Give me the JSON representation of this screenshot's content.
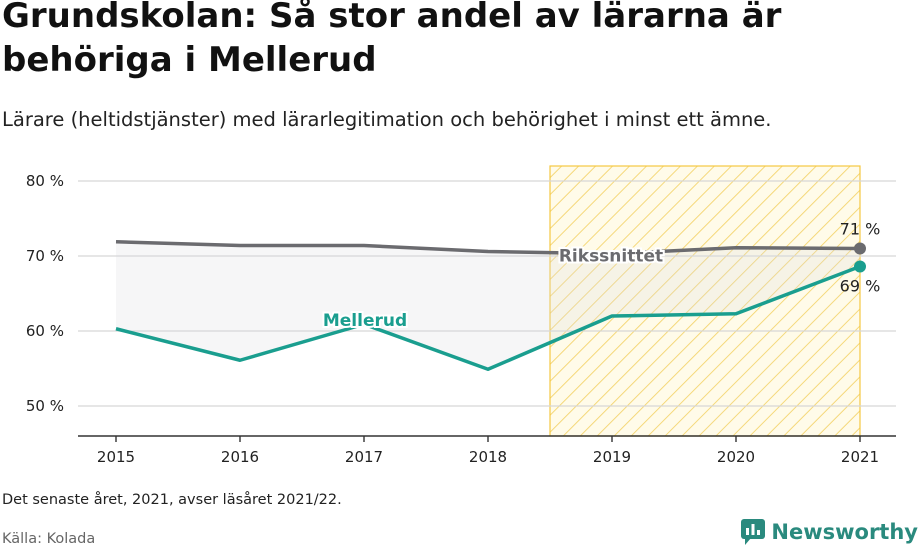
{
  "header": {
    "title": "Grundskolan: Så stor andel av lärarna är behöriga i Mellerud",
    "subtitle": "Lärare (heltidstjänster) med lärarlegitimation och behörighet i minst ett ämne."
  },
  "footer": {
    "note": "Det senaste året, 2021, avser läsåret 2021/22.",
    "source": "Källa: Kolada",
    "brand": "Newsworthy"
  },
  "colors": {
    "mellerud": "#1a9e8f",
    "riket": "#6b6b6f",
    "highlight": "#f5c842",
    "brand": "#2a8a7e"
  },
  "chart_data": {
    "type": "line",
    "x": [
      2015,
      2016,
      2017,
      2018,
      2019,
      2020,
      2021
    ],
    "series": [
      {
        "name": "Mellerud",
        "values": [
          60.3,
          56.1,
          60.9,
          54.9,
          62.0,
          62.3,
          68.6
        ],
        "end_label": "69 %"
      },
      {
        "name": "Rikssnittet",
        "values": [
          71.9,
          71.4,
          71.4,
          70.6,
          70.3,
          71.1,
          71.0
        ],
        "end_label": "71 %"
      }
    ],
    "ylim": [
      46,
      82
    ],
    "yticks": [
      50,
      60,
      70,
      80
    ],
    "ytick_labels": [
      "50 %",
      "60 %",
      "70 %",
      "80 %"
    ],
    "highlight_range": [
      2018.5,
      2021
    ],
    "highlight_style": "hatched",
    "grid": true,
    "legend": "inline labels"
  }
}
